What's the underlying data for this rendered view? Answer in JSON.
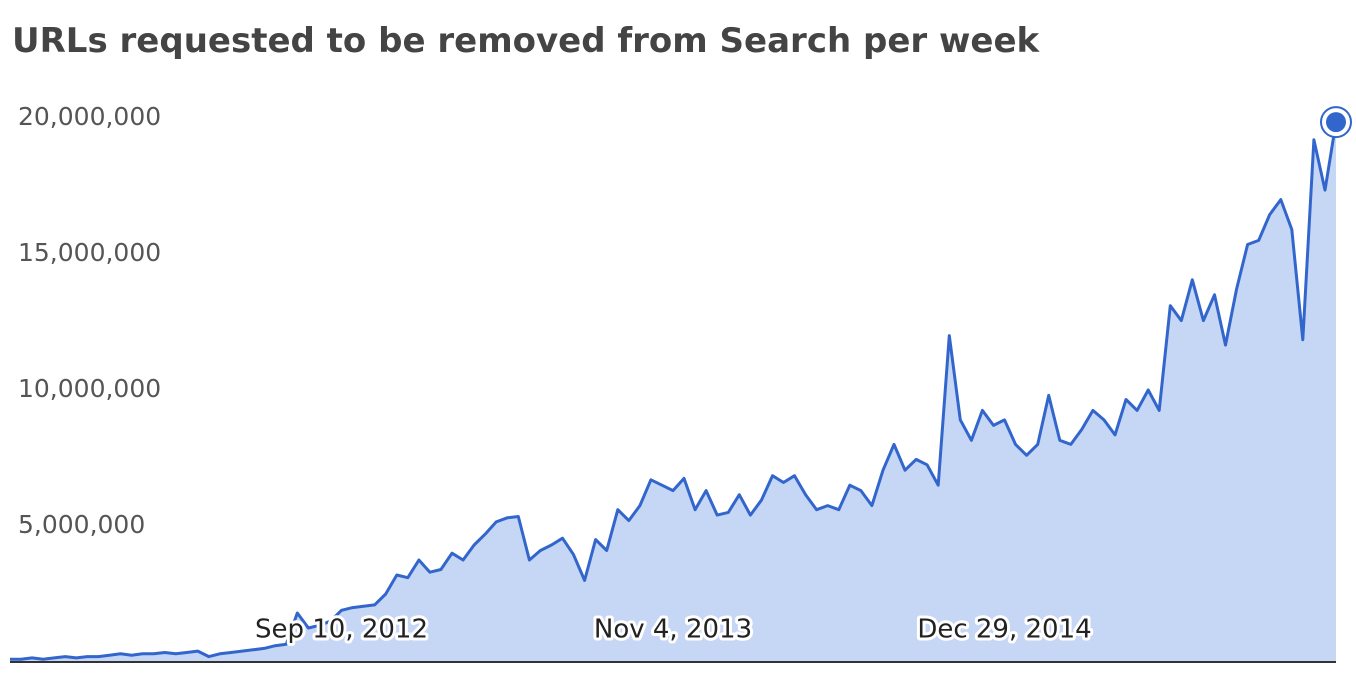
{
  "chart_data": {
    "type": "area",
    "title": "URLs requested to be removed from Search per week",
    "categories": [
      null,
      null,
      null,
      null,
      null,
      null,
      null,
      null,
      null,
      null,
      null,
      null,
      null,
      null,
      null,
      null,
      null,
      null,
      null,
      null,
      null,
      null,
      null,
      null,
      null,
      null,
      null,
      null,
      null,
      null,
      "Sep 10, 2012",
      null,
      null,
      null,
      null,
      null,
      null,
      null,
      null,
      null,
      null,
      null,
      null,
      null,
      null,
      null,
      null,
      null,
      null,
      null,
      null,
      null,
      null,
      null,
      null,
      null,
      null,
      null,
      null,
      null,
      "Nov 4, 2013",
      null,
      null,
      null,
      null,
      null,
      null,
      null,
      null,
      null,
      null,
      null,
      null,
      null,
      null,
      null,
      null,
      null,
      null,
      null,
      null,
      null,
      null,
      null,
      null,
      null,
      null,
      null,
      null,
      null,
      "Dec 29, 2014",
      null,
      null,
      null,
      null,
      null,
      null,
      null,
      null,
      null,
      null,
      null,
      null,
      null,
      null,
      null,
      null,
      null,
      null,
      null,
      null,
      null,
      null,
      null,
      null,
      null,
      null,
      null,
      null,
      null,
      null
    ],
    "values": [
      100000,
      100000,
      150000,
      100000,
      150000,
      200000,
      150000,
      200000,
      200000,
      250000,
      300000,
      250000,
      300000,
      300000,
      350000,
      300000,
      350000,
      400000,
      200000,
      300000,
      350000,
      400000,
      450000,
      500000,
      600000,
      650000,
      1800000,
      1250000,
      1350000,
      1500000,
      1900000,
      2000000,
      2050000,
      2100000,
      2500000,
      3200000,
      3100000,
      3750000,
      3300000,
      3400000,
      4000000,
      3750000,
      4300000,
      4700000,
      5150000,
      5300000,
      5350000,
      3750000,
      4100000,
      4300000,
      4550000,
      3950000,
      3000000,
      4500000,
      4100000,
      5600000,
      5200000,
      5750000,
      6700000,
      6500000,
      6300000,
      6750000,
      5600000,
      6300000,
      5400000,
      5500000,
      6150000,
      5400000,
      5950000,
      6850000,
      6600000,
      6850000,
      6150000,
      5600000,
      5750000,
      5600000,
      6500000,
      6300000,
      5750000,
      7050000,
      8000000,
      7050000,
      7450000,
      7250000,
      6500000,
      12000000,
      8900000,
      8150000,
      9250000,
      8700000,
      8900000,
      8000000,
      7600000,
      8000000,
      9800000,
      8150000,
      8000000,
      8550000,
      9250000,
      8900000,
      8350000,
      9650000,
      9250000,
      10000000,
      9250000,
      13100000,
      12550000,
      14050000,
      12550000,
      13500000,
      11650000,
      13700000,
      15350000,
      15500000,
      16450000,
      17000000,
      15900000,
      11850000,
      19200000,
      17350000,
      19850000
    ],
    "color": "#3366cc",
    "fill_color": "#c6d6f5",
    "ylim": [
      0,
      20000000
    ],
    "yticks": [
      {
        "value": 5000000,
        "label": "5,000,000"
      },
      {
        "value": 10000000,
        "label": "10,000,000"
      },
      {
        "value": 15000000,
        "label": "15,000,000"
      },
      {
        "value": 20000000,
        "label": "20,000,000"
      }
    ]
  }
}
